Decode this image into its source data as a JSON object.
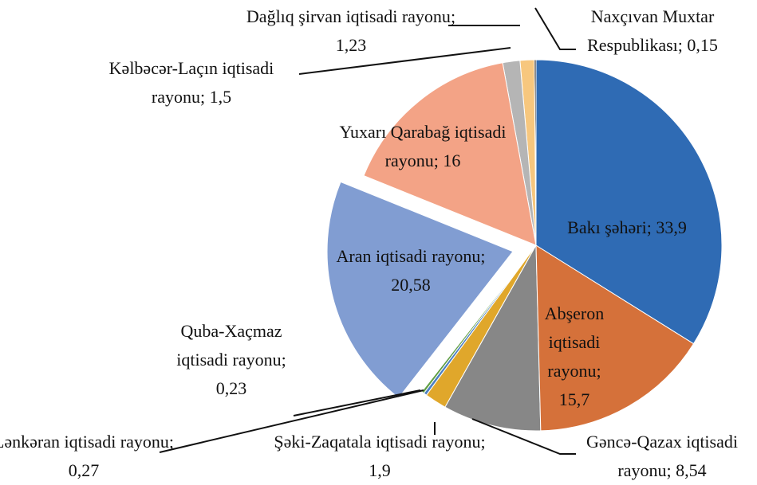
{
  "chart_data": {
    "type": "pie",
    "categories": [
      "Bakı şəhəri",
      "Abşeron iqtisadi rayonu",
      "Gəncə-Qazax iqtisadi rayonu",
      "Şəki-Zaqatala iqtisadi rayonu",
      "Lənkəran iqtisadi rayonu",
      "Quba-Xaçmaz iqtisadi rayonu",
      "Aran iqtisadi rayonu",
      "Yuxarı Qarabağ iqtisadi rayonu",
      "Kəlbəcər-Laçın iqtisadi rayonu",
      "Dağlıq şirvan iqtisadi rayonu",
      "Naxçıvan Muxtar Respublikası"
    ],
    "values": [
      33.9,
      15.7,
      8.54,
      1.9,
      0.27,
      0.23,
      20.58,
      16,
      1.5,
      1.23,
      0.15
    ],
    "value_labels": [
      "33,9",
      "15,7",
      "8,54",
      "1,9",
      "0,27",
      "0,23",
      "20,58",
      "16",
      "1,5",
      "1,23",
      "0,15"
    ],
    "label_separator": "; ",
    "colors": [
      "#2f6bb4",
      "#d5713a",
      "#878787",
      "#e0a72b",
      "#4d80c2",
      "#5f9e43",
      "#819dd2",
      "#f3a386",
      "#b5b5b5",
      "#f7c77e",
      "#1a1a1a"
    ]
  }
}
